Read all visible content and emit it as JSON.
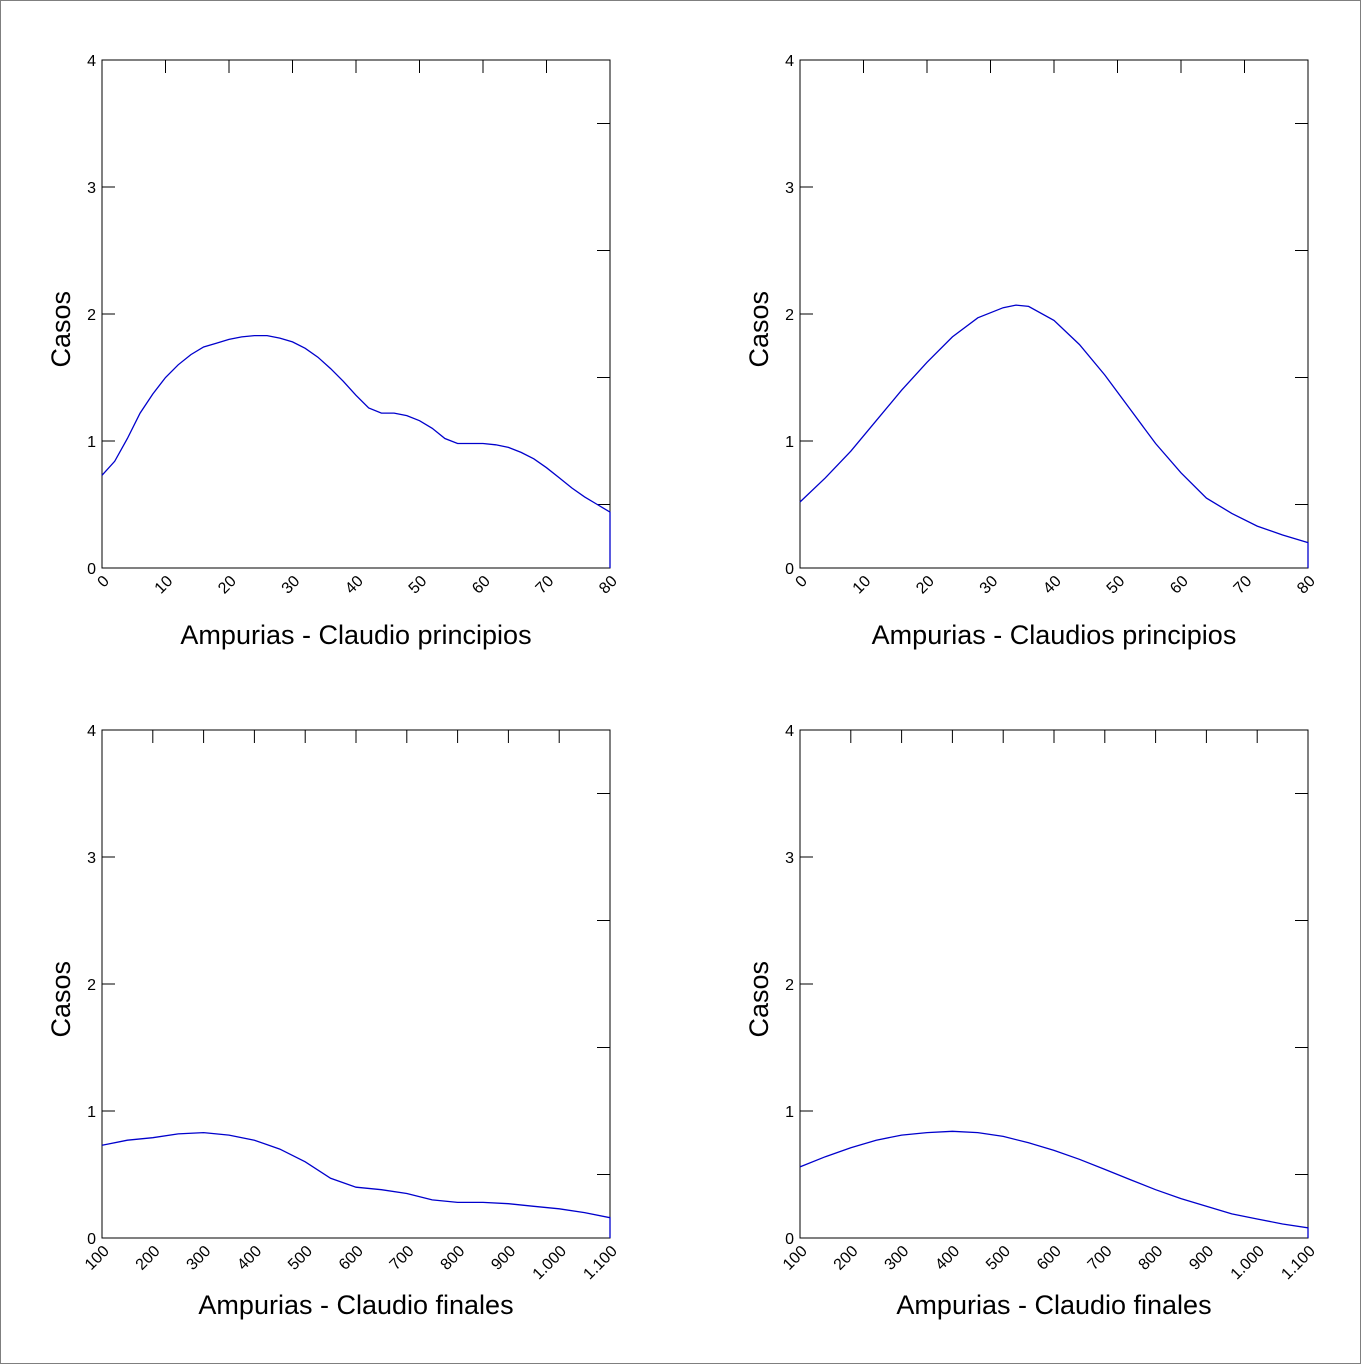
{
  "chart_data": [
    {
      "type": "line",
      "xlabel": "Ampurias - Claudio principios",
      "ylabel": "Casos",
      "xlim": [
        0,
        80
      ],
      "ylim": [
        0,
        4
      ],
      "xticks": [
        0,
        10,
        20,
        30,
        40,
        50,
        60,
        70,
        80
      ],
      "xtick_labels": [
        "0",
        "10",
        "20",
        "30",
        "40",
        "50",
        "60",
        "70",
        "80"
      ],
      "yticks": [
        0,
        1,
        2,
        3,
        4
      ],
      "ytick_labels": [
        "0",
        "1",
        "2",
        "3",
        "4"
      ],
      "line_color": "#0000cc",
      "x": [
        0,
        2,
        4,
        6,
        8,
        10,
        12,
        14,
        16,
        18,
        20,
        22,
        24,
        26,
        28,
        30,
        32,
        34,
        36,
        38,
        40,
        42,
        44,
        46,
        48,
        50,
        52,
        54,
        56,
        58,
        60,
        62,
        64,
        66,
        68,
        70,
        72,
        74,
        76,
        78,
        80
      ],
      "y": [
        0.73,
        0.84,
        1.02,
        1.22,
        1.37,
        1.5,
        1.6,
        1.68,
        1.74,
        1.77,
        1.8,
        1.82,
        1.83,
        1.83,
        1.81,
        1.78,
        1.73,
        1.66,
        1.57,
        1.47,
        1.36,
        1.26,
        1.22,
        1.22,
        1.2,
        1.16,
        1.1,
        1.02,
        0.98,
        0.98,
        0.98,
        0.97,
        0.95,
        0.91,
        0.86,
        0.79,
        0.71,
        0.63,
        0.56,
        0.5,
        0.44
      ]
    },
    {
      "type": "line",
      "xlabel": "Ampurias - Claudios principios",
      "ylabel": "Casos",
      "xlim": [
        0,
        80
      ],
      "ylim": [
        0,
        4
      ],
      "xticks": [
        0,
        10,
        20,
        30,
        40,
        50,
        60,
        70,
        80
      ],
      "xtick_labels": [
        "0",
        "10",
        "20",
        "30",
        "40",
        "50",
        "60",
        "70",
        "80"
      ],
      "yticks": [
        0,
        1,
        2,
        3,
        4
      ],
      "ytick_labels": [
        "0",
        "1",
        "2",
        "3",
        "4"
      ],
      "line_color": "#0000cc",
      "x": [
        0,
        4,
        8,
        12,
        16,
        20,
        24,
        28,
        32,
        34,
        36,
        40,
        44,
        48,
        52,
        56,
        60,
        64,
        68,
        72,
        76,
        80
      ],
      "y": [
        0.52,
        0.71,
        0.92,
        1.16,
        1.4,
        1.62,
        1.82,
        1.97,
        2.05,
        2.07,
        2.06,
        1.95,
        1.76,
        1.52,
        1.25,
        0.98,
        0.75,
        0.55,
        0.43,
        0.33,
        0.26,
        0.2
      ]
    },
    {
      "type": "line",
      "xlabel": "Ampurias - Claudio finales",
      "ylabel": "Casos",
      "xlim": [
        100,
        1100
      ],
      "ylim": [
        0,
        4
      ],
      "xticks": [
        100,
        200,
        300,
        400,
        500,
        600,
        700,
        800,
        900,
        1000,
        1100
      ],
      "xtick_labels": [
        "100",
        "200",
        "300",
        "400",
        "500",
        "600",
        "700",
        "800",
        "900",
        "1.000",
        "1.100"
      ],
      "yticks": [
        0,
        1,
        2,
        3,
        4
      ],
      "ytick_labels": [
        "0",
        "1",
        "2",
        "3",
        "4"
      ],
      "line_color": "#0000cc",
      "x": [
        100,
        150,
        200,
        250,
        300,
        350,
        400,
        450,
        500,
        550,
        600,
        650,
        700,
        750,
        800,
        850,
        900,
        950,
        1000,
        1050,
        1100
      ],
      "y": [
        0.73,
        0.77,
        0.79,
        0.82,
        0.83,
        0.81,
        0.77,
        0.7,
        0.6,
        0.47,
        0.4,
        0.38,
        0.35,
        0.3,
        0.28,
        0.28,
        0.27,
        0.25,
        0.23,
        0.2,
        0.16
      ]
    },
    {
      "type": "line",
      "xlabel": "Ampurias - Claudio finales",
      "ylabel": "Casos",
      "xlim": [
        100,
        1100
      ],
      "ylim": [
        0,
        4
      ],
      "xticks": [
        100,
        200,
        300,
        400,
        500,
        600,
        700,
        800,
        900,
        1000,
        1100
      ],
      "xtick_labels": [
        "100",
        "200",
        "300",
        "400",
        "500",
        "600",
        "700",
        "800",
        "900",
        "1.000",
        "1.100"
      ],
      "yticks": [
        0,
        1,
        2,
        3,
        4
      ],
      "ytick_labels": [
        "0",
        "1",
        "2",
        "3",
        "4"
      ],
      "line_color": "#0000cc",
      "x": [
        100,
        150,
        200,
        250,
        300,
        350,
        400,
        450,
        500,
        550,
        600,
        650,
        700,
        750,
        800,
        850,
        900,
        950,
        1000,
        1050,
        1100
      ],
      "y": [
        0.56,
        0.64,
        0.71,
        0.77,
        0.81,
        0.83,
        0.84,
        0.83,
        0.8,
        0.75,
        0.69,
        0.62,
        0.54,
        0.46,
        0.38,
        0.31,
        0.25,
        0.19,
        0.15,
        0.11,
        0.08
      ]
    }
  ]
}
